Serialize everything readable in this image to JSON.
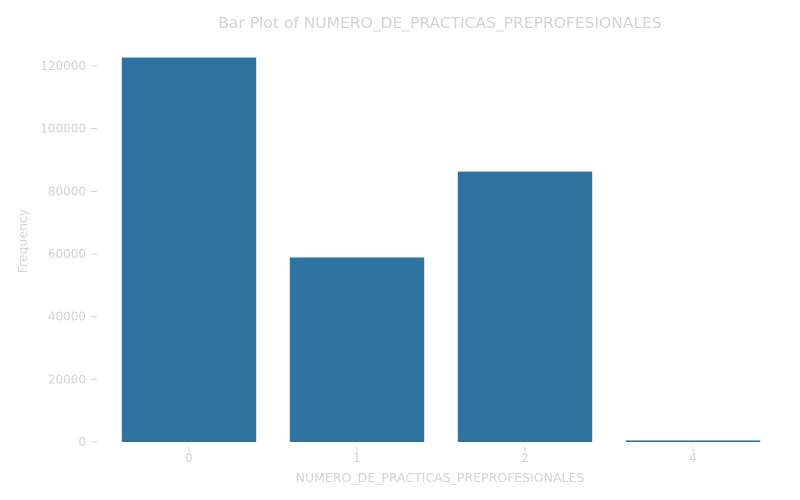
{
  "chart_data": {
    "type": "bar",
    "title": "Bar Plot of NUMERO_DE_PRACTICAS_PREPROFESIONALES",
    "xlabel": "NUMERO_DE_PRACTICAS_PREPROFESIONALES",
    "ylabel": "Frequency",
    "categories": [
      "0",
      "1",
      "2",
      "4"
    ],
    "values": [
      122700,
      58900,
      86300,
      500
    ],
    "ylim": [
      0,
      125000
    ],
    "yticks": [
      0,
      20000,
      40000,
      60000,
      80000,
      100000,
      120000
    ],
    "ytick_labels": [
      "0",
      "20000",
      "40000",
      "60000",
      "80000",
      "100000",
      "120000"
    ],
    "grid": false,
    "colors": {
      "bar": "#2e72a0",
      "text": "#d3d3d3"
    }
  }
}
